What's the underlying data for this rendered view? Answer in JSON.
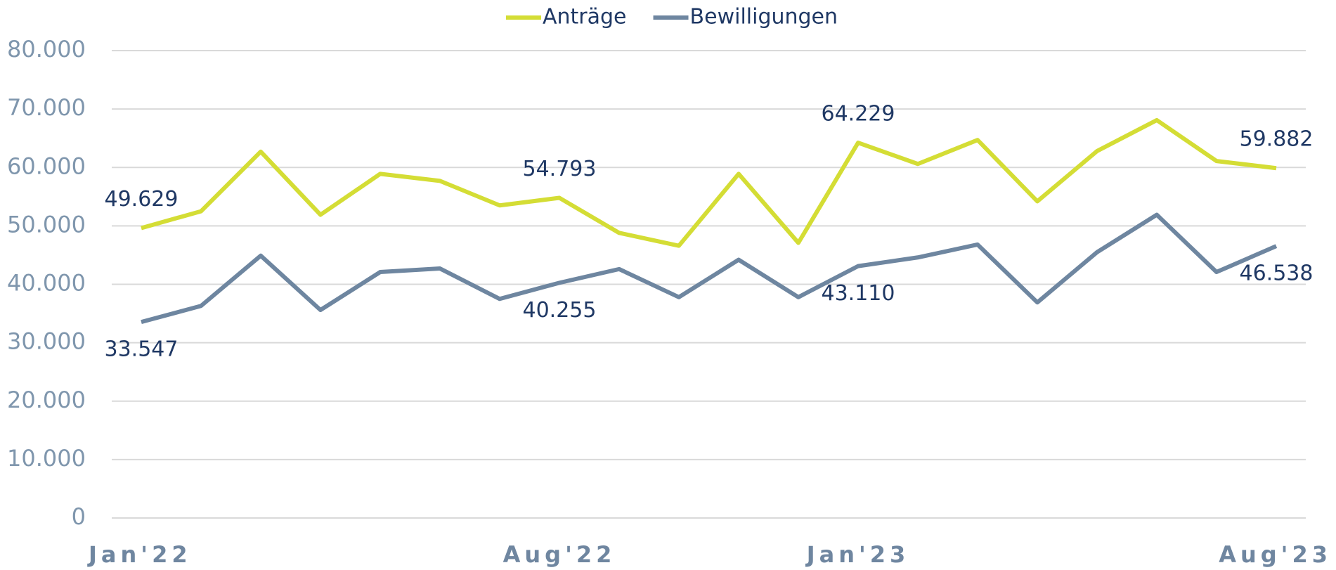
{
  "chart_data": {
    "type": "line",
    "categories": [
      "Jan'22",
      null,
      null,
      null,
      null,
      null,
      null,
      "Aug'22",
      null,
      null,
      null,
      null,
      "Jan'23",
      null,
      null,
      null,
      null,
      null,
      null,
      "Aug'23"
    ],
    "series": [
      {
        "name": "Anträge",
        "color": "#d4dd35",
        "values": [
          49629,
          52500,
          62700,
          51900,
          58900,
          57700,
          53500,
          54793,
          48800,
          46600,
          58900,
          47100,
          64229,
          60600,
          64700,
          54200,
          62800,
          68100,
          61100,
          59882
        ],
        "value_labels": [
          "49.629",
          null,
          null,
          null,
          null,
          null,
          null,
          "54.793",
          null,
          null,
          null,
          null,
          "64.229",
          null,
          null,
          null,
          null,
          null,
          null,
          "59.882"
        ]
      },
      {
        "name": "Bewilligungen",
        "color": "#6e86a0",
        "values": [
          33547,
          36300,
          44900,
          35600,
          42100,
          42700,
          37500,
          40255,
          42600,
          37800,
          44200,
          37800,
          43110,
          44600,
          46800,
          36900,
          45500,
          51900,
          42100,
          46538
        ],
        "value_labels": [
          "33.547",
          null,
          null,
          null,
          null,
          null,
          null,
          "40.255",
          null,
          null,
          null,
          null,
          "43.110",
          null,
          null,
          null,
          null,
          null,
          null,
          "46.538"
        ]
      }
    ],
    "ylim": [
      0,
      80000
    ],
    "yticks": [
      0,
      {
        "value": 10000,
        "label": "10.000"
      },
      {
        "value": 20000,
        "label": "20.000"
      },
      {
        "value": 30000,
        "label": "30.000"
      },
      {
        "value": 40000,
        "label": "40.000"
      },
      {
        "value": 50000,
        "label": "50.000"
      },
      {
        "value": 60000,
        "label": "60.000"
      },
      {
        "value": 70000,
        "label": "70.000"
      },
      {
        "value": 80000,
        "label": "80.000"
      }
    ],
    "grid": true,
    "legend": "top"
  }
}
